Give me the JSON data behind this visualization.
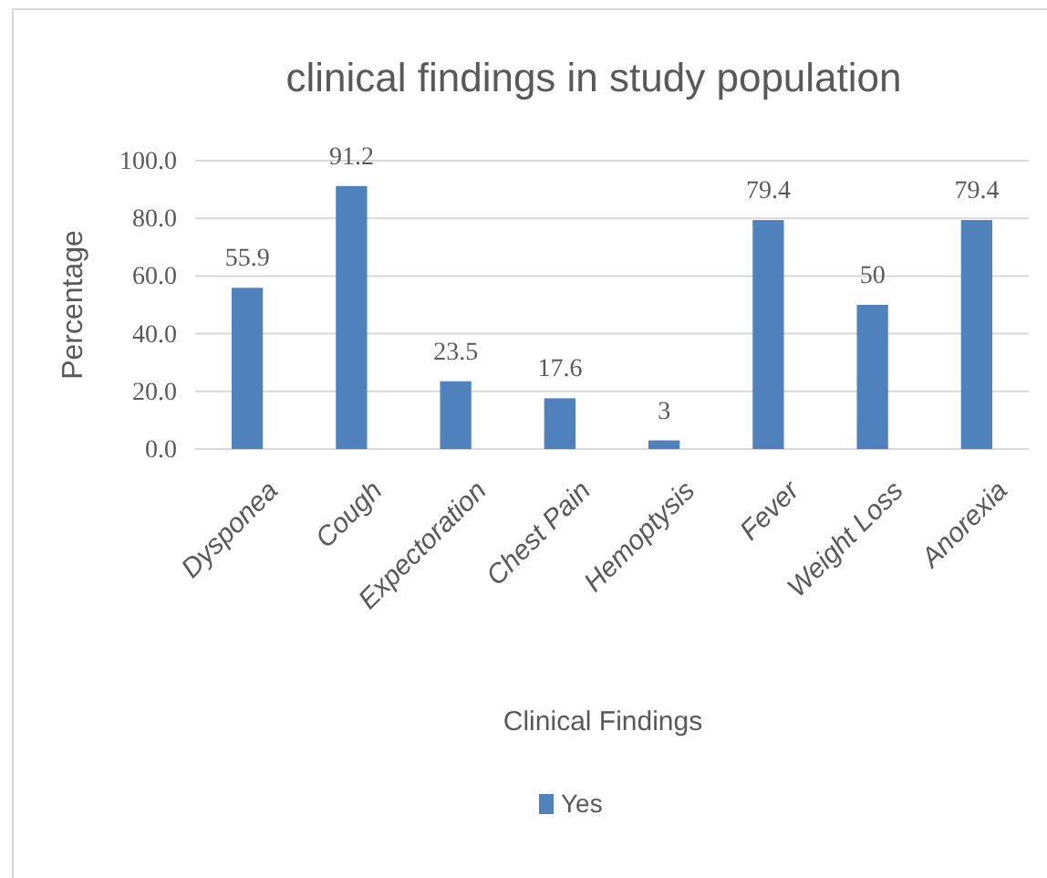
{
  "chart_data": {
    "type": "bar",
    "title": "clinical findings in study population",
    "xlabel": "Clinical Findings",
    "ylabel": "Percentage",
    "categories": [
      "Dysponea",
      "Cough",
      "Expectoration",
      "Chest Pain",
      "Hemoptysis",
      "Fever",
      "Weight Loss",
      "Anorexia"
    ],
    "series": [
      {
        "name": "Yes",
        "color": "#4f81bd",
        "values": [
          55.9,
          91.2,
          23.5,
          17.6,
          3,
          79.4,
          50,
          79.4
        ]
      }
    ],
    "ylim": [
      0,
      100
    ],
    "yticks": [
      {
        "value": 0,
        "label": "0.0"
      },
      {
        "value": 20,
        "label": "20.0"
      },
      {
        "value": 40,
        "label": "40.0"
      },
      {
        "value": 60,
        "label": "60.0"
      },
      {
        "value": 80,
        "label": "80.0"
      },
      {
        "value": 100,
        "label": "100.0"
      }
    ],
    "grid": "y",
    "legend": "bottom",
    "data_labels": true
  }
}
